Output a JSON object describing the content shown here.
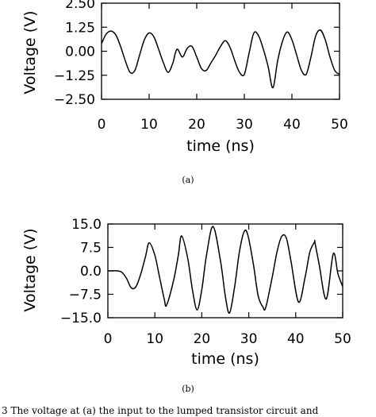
{
  "chart_data": [
    {
      "type": "line",
      "panel_label": "(a)",
      "xlabel": "time (ns)",
      "ylabel": "Voltage (V)",
      "xlim": [
        0,
        50
      ],
      "ylim": [
        -2.5,
        2.5
      ],
      "x_ticks": [
        "0",
        "10",
        "20",
        "30",
        "40",
        "50"
      ],
      "y_ticks": [
        "2.50",
        "1.25",
        "0.00",
        "−1.25",
        "−2.50"
      ],
      "grid": false,
      "series": [
        {
          "x": [
            0,
            1,
            2,
            3,
            4,
            5,
            6,
            7,
            8,
            9,
            10,
            11,
            12,
            13,
            14,
            15,
            15.5,
            16,
            17,
            18,
            19,
            20,
            21,
            22,
            23,
            24,
            25,
            26,
            27,
            28,
            29,
            30,
            31,
            32,
            33,
            34,
            35,
            36,
            37,
            38,
            39,
            40,
            41,
            42,
            43,
            44,
            45,
            46,
            47,
            48,
            49,
            50
          ],
          "y": [
            0.4,
            0.9,
            1.05,
            0.85,
            0.25,
            -0.5,
            -1.1,
            -1.0,
            -0.2,
            0.6,
            0.95,
            0.75,
            0.1,
            -0.6,
            -1.1,
            -0.6,
            -0.1,
            0.1,
            -0.3,
            0.15,
            0.25,
            -0.3,
            -0.9,
            -1.0,
            -0.6,
            -0.2,
            0.25,
            0.55,
            0.2,
            -0.5,
            -1.1,
            -1.2,
            -0.1,
            0.95,
            0.8,
            0.1,
            -0.8,
            -1.9,
            -0.5,
            0.5,
            1.0,
            0.6,
            -0.2,
            -1.0,
            -1.2,
            -0.3,
            0.8,
            1.1,
            0.6,
            -0.3,
            -1.0,
            -1.2
          ]
        }
      ]
    },
    {
      "type": "line",
      "panel_label": "(b)",
      "xlabel": "time (ns)",
      "ylabel": "Voltage (V)",
      "xlim": [
        0,
        50
      ],
      "ylim": [
        -15,
        15
      ],
      "x_ticks": [
        "0",
        "10",
        "20",
        "30",
        "40",
        "50"
      ],
      "y_ticks": [
        "15.0",
        "7.5",
        "0.0",
        "−7.5",
        "−15.0"
      ],
      "grid": false,
      "series": [
        {
          "x": [
            0,
            1,
            2,
            3,
            4,
            5,
            6,
            7,
            8,
            8.8,
            10,
            11,
            12,
            12.5,
            14,
            15,
            15.7,
            17,
            18,
            19,
            20,
            21,
            22.4,
            24,
            25,
            25.9,
            27,
            28,
            29,
            29.8,
            31,
            32,
            33,
            33.6,
            35,
            36,
            37,
            38,
            39,
            40.6,
            42,
            43,
            44,
            44.1,
            45,
            46.5,
            48,
            49,
            50
          ],
          "y": [
            0,
            0,
            0,
            -0.5,
            -2.5,
            -5.5,
            -5.0,
            -1.0,
            4.5,
            9.0,
            5.0,
            -2.0,
            -9.0,
            -11.0,
            -3.0,
            5.0,
            11.2,
            4.0,
            -6.0,
            -12.5,
            -6.0,
            5.0,
            14.2,
            3.0,
            -8.0,
            -13.5,
            -5.0,
            6.0,
            12.5,
            11.5,
            2.0,
            -8.0,
            -11.5,
            -11.8,
            -2.0,
            6.0,
            11.0,
            10.5,
            3.0,
            -10.0,
            -2.0,
            6.0,
            9.2,
            9.0,
            2.0,
            -9.0,
            5.5,
            -1.0,
            -5.0
          ]
        }
      ]
    }
  ],
  "caption": "3   The voltage at (a) the input to the lumped transistor circuit and"
}
